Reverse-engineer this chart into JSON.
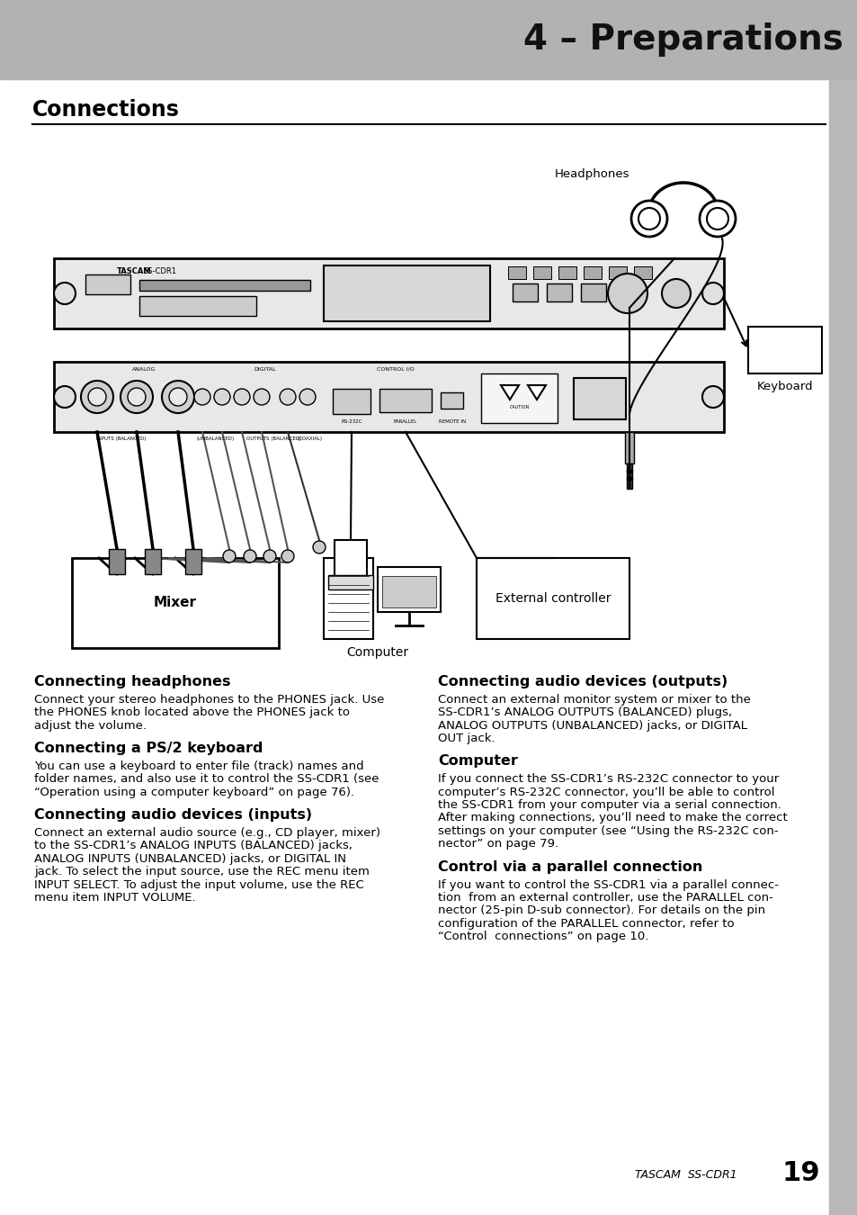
{
  "page_bg": "#ffffff",
  "header_bg": "#b2b2b2",
  "header_text": "4 – Preparations",
  "header_text_color": "#111111",
  "section_title": "Connections",
  "section_title_color": "#000000",
  "sidebar_color": "#b8b8b8",
  "footer_text": "TASCAM  SS-CDR1",
  "footer_page": "19",
  "left_sections": [
    {
      "title": "Connecting headphones",
      "body_parts": [
        {
          "text": "Connect your stereo headphones to the ",
          "bold": false
        },
        {
          "text": "PHONES",
          "bold": true
        },
        {
          "text": " jack. Use\nthe ",
          "bold": false
        },
        {
          "text": "PHONES",
          "bold": true
        },
        {
          "text": " knob located above the ",
          "bold": false
        },
        {
          "text": "PHONES",
          "bold": true
        },
        {
          "text": " jack to\nadjust the volume.",
          "bold": false
        }
      ]
    },
    {
      "title": "Connecting a PS/2 keyboard",
      "body_parts": [
        {
          "text": "You can use a keyboard to enter file (track) names and\nfolder names, and also use it to control the SS-CDR1 (see\n“Operation using a computer keyboard” on page 76).",
          "bold": false
        }
      ]
    },
    {
      "title": "Connecting audio devices (inputs)",
      "body_parts": [
        {
          "text": "Connect an external audio source (e.g., CD player, mixer)\nto the SS-CDR1’s ",
          "bold": false
        },
        {
          "text": "ANALOG INPUTS (BALANCED)",
          "bold": true
        },
        {
          "text": " jacks,\n",
          "bold": false
        },
        {
          "text": "ANALOG INPUTS (UNBALANCED)",
          "bold": true
        },
        {
          "text": " jacks, or ",
          "bold": false
        },
        {
          "text": "DIGITAL IN",
          "bold": true
        },
        {
          "text": "\njack. To select the input source, use the REC menu item\nINPUT SELECT. To adjust the input volume, use the REC\nmenu item INPUT VOLUME.",
          "bold": false
        }
      ]
    }
  ],
  "right_sections": [
    {
      "title": "Connecting audio devices (outputs)",
      "body_parts": [
        {
          "text": "Connect an external monitor system or mixer to the\nSS-CDR1’s ",
          "bold": false
        },
        {
          "text": "ANALOG OUTPUTS (BALANCED)",
          "bold": true
        },
        {
          "text": " plugs,\n",
          "bold": false
        },
        {
          "text": "ANALOG OUTPUTS (UNBALANCED)",
          "bold": true
        },
        {
          "text": " jacks, or ",
          "bold": false
        },
        {
          "text": "DIGITAL\nOUT",
          "bold": true
        },
        {
          "text": " jack.",
          "bold": false
        }
      ]
    },
    {
      "title": "Computer",
      "body_parts": [
        {
          "text": "If you connect the SS-CDR1’s RS-232C connector to your\ncomputer’s RS-232C connector, you’ll be able to control\nthe SS-CDR1 from your computer via a serial connection.\nAfter making connections, you’ll need to make the correct\nsettings on your computer (see “Using the RS-232C con-\nnector” on page 79.",
          "bold": false
        }
      ]
    },
    {
      "title": "Control via a parallel connection",
      "body_parts": [
        {
          "text": "If you want to control the SS-CDR1 via a parallel connec-\ntion  from an external controller, use the ",
          "bold": false
        },
        {
          "text": "PARALLEL",
          "bold": true
        },
        {
          "text": " con-\nnector (25-pin D-sub connector). For details on the pin\nconfiguration of the ",
          "bold": false
        },
        {
          "text": "PARALLEL",
          "bold": true
        },
        {
          "text": " connector, refer to\n“Control  connections” on page 10.",
          "bold": false
        }
      ]
    }
  ],
  "diagram_labels": {
    "headphones": "Headphones",
    "keyboard": "Keyboard",
    "mixer": "Mixer",
    "computer": "Computer",
    "external_controller": "External controller"
  }
}
